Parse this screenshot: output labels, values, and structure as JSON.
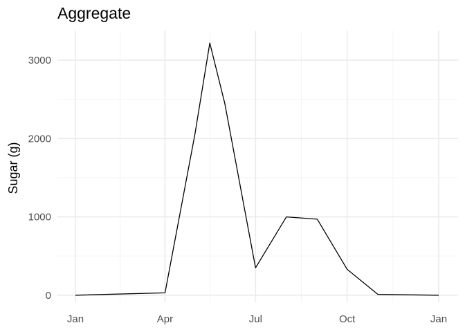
{
  "chart_data": {
    "type": "line",
    "title": "Aggregate",
    "xlabel": "",
    "ylabel": "Sugar (g)",
    "x_tick_labels": [
      "Jan",
      "Apr",
      "Jul",
      "Oct",
      "Jan"
    ],
    "y_tick_labels": [
      "0",
      "1000",
      "2000",
      "3000"
    ],
    "ylim": [
      -90,
      3380
    ],
    "grid": true,
    "series": [
      {
        "color": "#000000",
        "points": [
          {
            "x": "Jan 1",
            "y": 0
          },
          {
            "x": "Apr 1",
            "y": 30
          },
          {
            "x": "May 1",
            "y": 2050
          },
          {
            "x": "May 16",
            "y": 3220
          },
          {
            "x": "May 31",
            "y": 2450
          },
          {
            "x": "Jul 1",
            "y": 350
          },
          {
            "x": "Aug 1",
            "y": 1000
          },
          {
            "x": "Sep 1",
            "y": 970
          },
          {
            "x": "Oct 1",
            "y": 330
          },
          {
            "x": "Nov 1",
            "y": 10
          },
          {
            "x": "Jan 1",
            "y": 0
          }
        ]
      }
    ]
  }
}
